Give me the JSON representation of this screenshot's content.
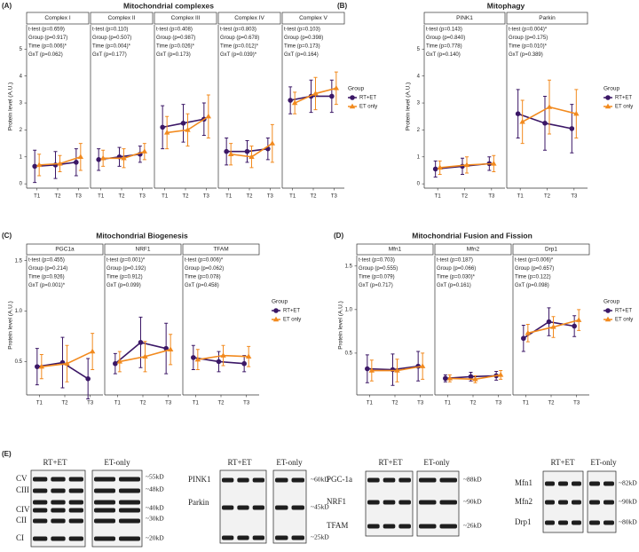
{
  "chart_data": [
    {
      "type": "line",
      "panel_label": "(A)",
      "title": "Mitochondrial complexes",
      "ylabel": "Protein level (A.U.)",
      "categories": [
        "T1",
        "T2",
        "T3"
      ],
      "ylim": [
        -0.16,
        5.9
      ],
      "yticks": [
        0,
        1,
        2,
        3,
        4,
        5
      ],
      "legend_title": "Group",
      "groups": [
        {
          "name": "RT+ET",
          "color": "#3b1766",
          "marker": "circle"
        },
        {
          "name": "ET only",
          "color": "#f28a1e",
          "marker": "triangle"
        }
      ],
      "facets": [
        {
          "name": "Complex I",
          "stats": [
            "t-test (p=0.659)",
            "Group (p=0.917)",
            "Time (p=0.006)*",
            "GxT (p=0.062)"
          ],
          "series": [
            {
              "values": [
                0.65,
                0.7,
                0.8
              ],
              "errors": [
                0.6,
                0.5,
                0.5
              ]
            },
            {
              "values": [
                0.7,
                0.75,
                1.0
              ],
              "errors": [
                0.4,
                0.3,
                0.5
              ]
            }
          ]
        },
        {
          "name": "Complex II",
          "stats": [
            "t-test (p=0.110)",
            "Group (p=0.507)",
            "Time (p=0.004)*",
            "GxT (p=0.177)"
          ],
          "series": [
            {
              "values": [
                0.9,
                1.0,
                1.1
              ],
              "errors": [
                0.4,
                0.35,
                0.3
              ]
            },
            {
              "values": [
                0.95,
                0.95,
                1.2
              ],
              "errors": [
                0.3,
                0.35,
                0.3
              ]
            }
          ]
        },
        {
          "name": "Complex III",
          "stats": [
            "t-test (p=0.408)",
            "Group (p=0.987)",
            "Time (p=0.026)*",
            "GxT (p=0.173)"
          ],
          "series": [
            {
              "values": [
                2.1,
                2.25,
                2.4
              ],
              "errors": [
                0.8,
                0.7,
                0.6
              ]
            },
            {
              "values": [
                1.9,
                2.0,
                2.5
              ],
              "errors": [
                0.6,
                0.6,
                0.8
              ]
            }
          ]
        },
        {
          "name": "Complex IV",
          "stats": [
            "t-test (p=0.803)",
            "Group (p=0.678)",
            "Time (p=0.012)*",
            "GxT (p=0.039)*"
          ],
          "series": [
            {
              "values": [
                1.2,
                1.2,
                1.3
              ],
              "errors": [
                0.5,
                0.4,
                0.4
              ]
            },
            {
              "values": [
                1.1,
                1.0,
                1.5
              ],
              "errors": [
                0.4,
                0.4,
                0.7
              ]
            }
          ]
        },
        {
          "name": "Complex V",
          "stats": [
            "t-test (p=0.103)",
            "Group (p=0.398)",
            "Time (p=0.173)",
            "GxT (p=0.164)"
          ],
          "series": [
            {
              "values": [
                3.1,
                3.25,
                3.25
              ],
              "errors": [
                0.5,
                0.6,
                0.6
              ]
            },
            {
              "values": [
                3.0,
                3.35,
                3.55
              ],
              "errors": [
                0.4,
                0.6,
                0.6
              ]
            }
          ]
        }
      ]
    },
    {
      "type": "line",
      "panel_label": "(B)",
      "title": "Mitophagy",
      "ylabel": "Protein level (A.U.)",
      "categories": [
        "T1",
        "T2",
        "T3"
      ],
      "ylim": [
        -0.16,
        5.9
      ],
      "yticks": [
        0,
        1,
        2,
        3,
        4,
        5
      ],
      "legend_title": "Group",
      "groups": [
        {
          "name": "RT+ET",
          "color": "#3b1766",
          "marker": "circle"
        },
        {
          "name": "ET only",
          "color": "#f28a1e",
          "marker": "triangle"
        }
      ],
      "facets": [
        {
          "name": "PINK1",
          "stats": [
            "t-test (p=0.143)",
            "Group (p=0.840)",
            "Time (p=0.778)",
            "GxT (p=0.140)"
          ],
          "series": [
            {
              "values": [
                0.55,
                0.65,
                0.75
              ],
              "errors": [
                0.3,
                0.3,
                0.25
              ]
            },
            {
              "values": [
                0.6,
                0.7,
                0.75
              ],
              "errors": [
                0.25,
                0.3,
                0.3
              ]
            }
          ]
        },
        {
          "name": "Parkin",
          "stats": [
            "t-test (p=0.004)*",
            "Group (p=0.175)",
            "Time (p=0.010)*",
            "GxT (p=0.389)"
          ],
          "series": [
            {
              "values": [
                2.6,
                2.25,
                2.05
              ],
              "errors": [
                0.9,
                1.0,
                0.9
              ]
            },
            {
              "values": [
                2.3,
                2.85,
                2.6
              ],
              "errors": [
                0.8,
                1.0,
                0.9
              ]
            }
          ]
        }
      ]
    },
    {
      "type": "line",
      "panel_label": "(C)",
      "title": "Mitochondrial Biogenesis",
      "ylabel": "Protein level (A.U.)",
      "categories": [
        "T1",
        "T2",
        "T3"
      ],
      "ylim": [
        0.17,
        1.55
      ],
      "yticks": [
        {
          "value": 0.5,
          "label": "0.5"
        },
        {
          "value": 1,
          "label": "1.0"
        },
        {
          "value": 1.5,
          "label": "1.5"
        }
      ],
      "legend_title": "Group",
      "groups": [
        {
          "name": "RT+ET",
          "color": "#3b1766",
          "marker": "circle"
        },
        {
          "name": "ET only",
          "color": "#f28a1e",
          "marker": "triangle"
        }
      ],
      "facets": [
        {
          "name": "PGC1a",
          "stats": [
            "t-test (p=0.455)",
            "Group (p=0.214)",
            "Time (p=0.926)",
            "GxT (p=0.001)*"
          ],
          "series": [
            {
              "values": [
                0.45,
                0.49,
                0.33
              ],
              "errors": [
                0.18,
                0.25,
                0.2
              ]
            },
            {
              "values": [
                0.45,
                0.48,
                0.6
              ],
              "errors": [
                0.12,
                0.18,
                0.18
              ]
            }
          ]
        },
        {
          "name": "NRF1",
          "stats": [
            "t-test (p=0.001)*",
            "Group (p=0.192)",
            "Time (p=0.912)",
            "GxT (p=0.099)"
          ],
          "series": [
            {
              "values": [
                0.48,
                0.69,
                0.63
              ],
              "errors": [
                0.1,
                0.25,
                0.25
              ]
            },
            {
              "values": [
                0.5,
                0.55,
                0.62
              ],
              "errors": [
                0.1,
                0.15,
                0.15
              ]
            }
          ]
        },
        {
          "name": "TFAM",
          "stats": [
            "t-test (p=0.006)*",
            "Group (p=0.062)",
            "Time (p=0.078)",
            "GxT (p=0.458)"
          ],
          "series": [
            {
              "values": [
                0.54,
                0.5,
                0.48
              ],
              "errors": [
                0.12,
                0.1,
                0.08
              ]
            },
            {
              "values": [
                0.52,
                0.56,
                0.55
              ],
              "errors": [
                0.1,
                0.1,
                0.1
              ]
            }
          ]
        }
      ]
    },
    {
      "type": "line",
      "panel_label": "(D)",
      "title": "Mitochondrial Fusion and Fission",
      "ylabel": "Protein level (A.U.)",
      "categories": [
        "T1",
        "T2",
        "T3"
      ],
      "ylim": [
        0.02,
        1.62
      ],
      "yticks": [
        {
          "value": 0.5,
          "label": "0.5"
        },
        {
          "value": 1,
          "label": "1.0"
        },
        {
          "value": 1.5,
          "label": "1.5"
        }
      ],
      "legend_title": "Group",
      "groups": [
        {
          "name": "RT+ET",
          "color": "#3b1766",
          "marker": "circle"
        },
        {
          "name": "ET only",
          "color": "#f28a1e",
          "marker": "triangle"
        }
      ],
      "facets": [
        {
          "name": "Mfn1",
          "stats": [
            "t-test (p=0.703)",
            "Group (p=0.555)",
            "Time (p=0.079)",
            "GxT (p=0.717)"
          ],
          "series": [
            {
              "values": [
                0.32,
                0.31,
                0.35
              ],
              "errors": [
                0.16,
                0.18,
                0.17
              ]
            },
            {
              "values": [
                0.3,
                0.3,
                0.35
              ],
              "errors": [
                0.12,
                0.13,
                0.15
              ]
            }
          ]
        },
        {
          "name": "Mfn2",
          "stats": [
            "t-test (p=0.187)",
            "Group (p=0.066)",
            "Time (p=0.030)*",
            "GxT (p=0.161)"
          ],
          "series": [
            {
              "values": [
                0.21,
                0.23,
                0.24
              ],
              "errors": [
                0.04,
                0.05,
                0.05
              ]
            },
            {
              "values": [
                0.21,
                0.2,
                0.25
              ],
              "errors": [
                0.04,
                0.04,
                0.05
              ]
            }
          ]
        },
        {
          "name": "Drp1",
          "stats": [
            "t-test (p=0.006)*",
            "Group (p=0.657)",
            "Time (p=0.122)",
            "GxT (p=0.098)"
          ],
          "series": [
            {
              "values": [
                0.67,
                0.86,
                0.81
              ],
              "errors": [
                0.15,
                0.16,
                0.12
              ]
            },
            {
              "values": [
                0.73,
                0.8,
                0.88
              ],
              "errors": [
                0.1,
                0.12,
                0.12
              ]
            }
          ]
        }
      ]
    }
  ],
  "western_blots": {
    "panel_label": "(E)",
    "blots": [
      {
        "groups": [
          "RT+ET",
          "ET-only"
        ],
        "proteins": [
          "CV",
          "CIII",
          "CIV",
          "CII",
          "CI"
        ],
        "sizes": [
          "~55kD",
          "~48kD",
          "~40kD",
          "~30kD",
          "~20kD"
        ]
      },
      {
        "groups": [
          "RT+ET",
          "ET-only"
        ],
        "proteins": [
          "PINK1",
          "Parkin"
        ],
        "sizes": [
          "~60kD",
          "~45kD",
          "~25kD"
        ]
      },
      {
        "groups": [
          "RT+ET",
          "ET-only"
        ],
        "proteins": [
          "PGC-1a",
          "NRF1",
          "TFAM"
        ],
        "sizes": [
          "~88kD",
          "~90kD",
          "~26kD"
        ]
      },
      {
        "groups": [
          "RT+ET",
          "ET-only"
        ],
        "proteins": [
          "Mfn1",
          "Mfn2",
          "Drp1"
        ],
        "sizes": [
          "~82kD",
          "~90kD",
          "~80kD"
        ]
      }
    ]
  }
}
